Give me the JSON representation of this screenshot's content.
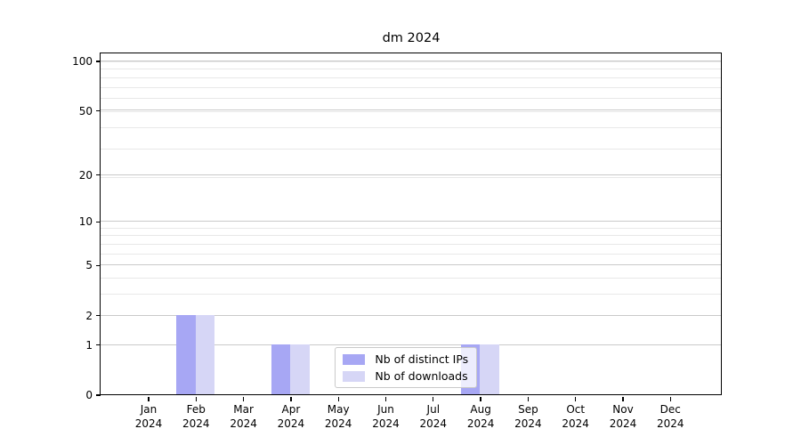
{
  "chart_data": {
    "type": "bar",
    "title": "dm 2024",
    "categories": [
      {
        "month": "Jan",
        "year": "2024"
      },
      {
        "month": "Feb",
        "year": "2024"
      },
      {
        "month": "Mar",
        "year": "2024"
      },
      {
        "month": "Apr",
        "year": "2024"
      },
      {
        "month": "May",
        "year": "2024"
      },
      {
        "month": "Jun",
        "year": "2024"
      },
      {
        "month": "Jul",
        "year": "2024"
      },
      {
        "month": "Aug",
        "year": "2024"
      },
      {
        "month": "Sep",
        "year": "2024"
      },
      {
        "month": "Oct",
        "year": "2024"
      },
      {
        "month": "Nov",
        "year": "2024"
      },
      {
        "month": "Dec",
        "year": "2024"
      }
    ],
    "series": [
      {
        "name": "Nb of distinct IPs",
        "color": "#a7a7f4",
        "values": [
          0,
          2,
          0,
          1,
          0,
          0,
          0,
          1,
          0,
          0,
          0,
          0
        ]
      },
      {
        "name": "Nb of downloads",
        "color": "#d6d6f6",
        "values": [
          0,
          2,
          0,
          1,
          0,
          0,
          0,
          1,
          0,
          0,
          0,
          0
        ]
      }
    ],
    "xlabel": "",
    "ylabel": "",
    "yscale": "log1p",
    "yticks": [
      0,
      1,
      2,
      5,
      10,
      20,
      50,
      100
    ],
    "ylim": [
      0,
      107
    ],
    "grid": true,
    "legend_position": "lower center",
    "colors": {
      "grid_major": "#c9c9c9",
      "grid_minor": "#e8e8e8",
      "spine": "#000000",
      "text": "#000000",
      "legend_border": "#c9c9c9"
    }
  }
}
